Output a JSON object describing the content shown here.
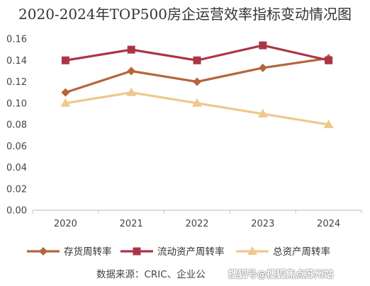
{
  "chart_data": {
    "type": "line",
    "title": "2020-2024年TOP500房企运营效率指标变动情况图",
    "categories": [
      "2020",
      "2021",
      "2022",
      "2023",
      "2024"
    ],
    "ylim": [
      0,
      0.16
    ],
    "yticks": [
      "0.00",
      "0.02",
      "0.04",
      "0.06",
      "0.08",
      "0.10",
      "0.12",
      "0.14",
      "0.16"
    ],
    "grid": false,
    "legend_position": "bottom",
    "series": [
      {
        "name": "存货周转率",
        "values": [
          0.11,
          0.13,
          0.12,
          0.133,
          0.142
        ],
        "color": "#b5663a",
        "marker": "diamond"
      },
      {
        "name": "流动资产周转率",
        "values": [
          0.14,
          0.15,
          0.14,
          0.154,
          0.14
        ],
        "color": "#ab3547",
        "marker": "square"
      },
      {
        "name": "总资产周转率",
        "values": [
          0.1,
          0.11,
          0.1,
          0.09,
          0.08
        ],
        "color": "#efc88c",
        "marker": "triangle"
      }
    ]
  },
  "footer": {
    "source": "数据来源：CRIC、企业公",
    "watermark": "搜狐号@搜狐焦点苏州站"
  }
}
